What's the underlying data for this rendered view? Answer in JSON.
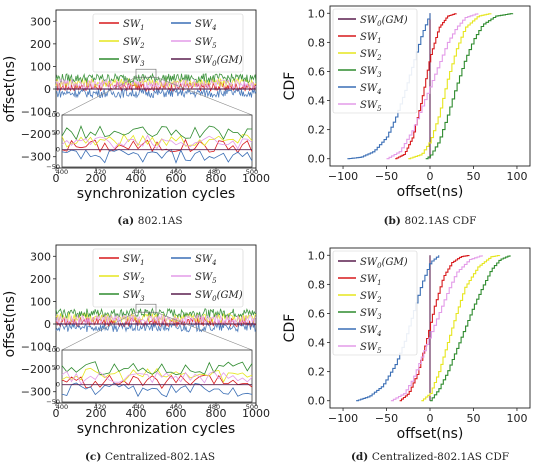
{
  "colors": {
    "SW0": "#5a1e4e",
    "SW1": "#d7191c",
    "SW2": "#e6e61e",
    "SW3": "#2e8b2e",
    "SW4": "#3a6eb5",
    "SW5": "#e39be8"
  },
  "chart_data": [
    {
      "type": "line",
      "panel_label": "(a)",
      "caption": "802.1AS",
      "xlabel": "synchronization cycles",
      "ylabel": "offset(ns)",
      "xlim": [
        0,
        1000
      ],
      "ylim": [
        -350,
        350
      ],
      "xticks": [
        "0",
        "200",
        "400",
        "600",
        "800",
        "1000"
      ],
      "yticks": [
        "300",
        "200",
        "100",
        "0",
        "−100",
        "−200",
        "−300"
      ],
      "series": [
        {
          "key": "SW1",
          "name": "SW1",
          "center": 10,
          "amp": 20
        },
        {
          "key": "SW2",
          "name": "SW2",
          "center": 28,
          "amp": 20
        },
        {
          "key": "SW3",
          "name": "SW3",
          "center": 48,
          "amp": 20
        },
        {
          "key": "SW4",
          "name": "SW4",
          "center": -18,
          "amp": 20
        },
        {
          "key": "SW5",
          "name": "SW5",
          "center": 22,
          "amp": 20
        },
        {
          "key": "SW0",
          "name": "SW0(GM)",
          "center": 0,
          "amp": 0
        }
      ],
      "inset": {
        "xlim": [
          400,
          500
        ],
        "ylim": [
          -50,
          100
        ],
        "xticks": [
          "400",
          "420",
          "440",
          "460",
          "480",
          "500"
        ],
        "yticks": [
          "100",
          "50",
          "0",
          "−50"
        ]
      }
    },
    {
      "type": "line",
      "panel_label": "(b)",
      "caption": "802.1AS CDF",
      "xlabel": "offset(ns)",
      "ylabel": "CDF",
      "xlim": [
        -115,
        115
      ],
      "ylim": [
        -0.05,
        1.05
      ],
      "xticks": [
        "−100",
        "−50",
        "0",
        "50",
        "100"
      ],
      "yticks": [
        "1.0",
        "0.8",
        "0.6",
        "0.4",
        "0.2",
        "0.0"
      ],
      "series": [
        {
          "key": "SW0",
          "name": "SW0(GM)",
          "x": [
            0,
            0
          ],
          "y": [
            0,
            1
          ]
        },
        {
          "key": "SW1",
          "name": "SW1",
          "x": [
            -40,
            -30,
            -20,
            -10,
            0,
            10,
            20,
            30
          ],
          "y": [
            0,
            0.03,
            0.15,
            0.4,
            0.7,
            0.9,
            0.98,
            1
          ]
        },
        {
          "key": "SW2",
          "name": "SW2",
          "x": [
            -25,
            -10,
            0,
            10,
            20,
            30,
            40,
            55,
            70
          ],
          "y": [
            0,
            0.03,
            0.12,
            0.3,
            0.55,
            0.75,
            0.9,
            0.98,
            1
          ]
        },
        {
          "key": "SW3",
          "name": "SW3",
          "x": [
            -5,
            0,
            10,
            20,
            30,
            40,
            50,
            60,
            75,
            95
          ],
          "y": [
            0,
            0.02,
            0.12,
            0.3,
            0.5,
            0.68,
            0.82,
            0.92,
            0.98,
            1
          ]
        },
        {
          "key": "SW4",
          "name": "SW4",
          "x": [
            -95,
            -80,
            -65,
            -50,
            -40,
            -30,
            -20,
            -10,
            0
          ],
          "y": [
            0,
            0.01,
            0.05,
            0.15,
            0.28,
            0.45,
            0.65,
            0.85,
            1
          ]
        },
        {
          "key": "SW5",
          "name": "SW5",
          "x": [
            -50,
            -35,
            -20,
            -10,
            0,
            10,
            20,
            30,
            40,
            55
          ],
          "y": [
            0,
            0.05,
            0.2,
            0.35,
            0.5,
            0.65,
            0.8,
            0.9,
            0.97,
            1
          ]
        }
      ]
    },
    {
      "type": "line",
      "panel_label": "(c)",
      "caption": "Centralized-802.1AS",
      "xlabel": "synchronization cycles",
      "ylabel": "offset(ns)",
      "xlim": [
        0,
        1000
      ],
      "ylim": [
        -350,
        350
      ],
      "xticks": [
        "0",
        "200",
        "400",
        "600",
        "800",
        "1000"
      ],
      "yticks": [
        "300",
        "200",
        "100",
        "0",
        "−100",
        "−200",
        "−300"
      ],
      "series": [
        {
          "key": "SW1",
          "name": "SW1",
          "center": 8,
          "amp": 20
        },
        {
          "key": "SW2",
          "name": "SW2",
          "center": 28,
          "amp": 20
        },
        {
          "key": "SW3",
          "name": "SW3",
          "center": 48,
          "amp": 20
        },
        {
          "key": "SW4",
          "name": "SW4",
          "center": -15,
          "amp": 20
        },
        {
          "key": "SW5",
          "name": "SW5",
          "center": 20,
          "amp": 20
        },
        {
          "key": "SW0",
          "name": "SW0(GM)",
          "center": 0,
          "amp": 0
        }
      ],
      "inset": {
        "xlim": [
          400,
          500
        ],
        "ylim": [
          -50,
          100
        ],
        "xticks": [
          "400",
          "420",
          "440",
          "460",
          "480",
          "500"
        ],
        "yticks": [
          "100",
          "50",
          "0",
          "−50"
        ]
      }
    },
    {
      "type": "line",
      "panel_label": "(d)",
      "caption": "Centralized-802.1AS CDF",
      "xlabel": "offset(ns)",
      "ylabel": "CDF",
      "xlim": [
        -115,
        115
      ],
      "ylim": [
        -0.05,
        1.05
      ],
      "xticks": [
        "−100",
        "−50",
        "0",
        "50",
        "100"
      ],
      "yticks": [
        "1.0",
        "0.8",
        "0.6",
        "0.4",
        "0.2",
        "0.0"
      ],
      "series": [
        {
          "key": "SW0",
          "name": "SW0(GM)",
          "x": [
            0,
            0
          ],
          "y": [
            0,
            1
          ]
        },
        {
          "key": "SW1",
          "name": "SW1",
          "x": [
            -35,
            -25,
            -15,
            -5,
            5,
            15,
            25,
            35,
            45
          ],
          "y": [
            0,
            0.05,
            0.18,
            0.4,
            0.65,
            0.85,
            0.95,
            0.99,
            1
          ]
        },
        {
          "key": "SW2",
          "name": "SW2",
          "x": [
            -10,
            0,
            10,
            20,
            30,
            40,
            55,
            70,
            80
          ],
          "y": [
            0,
            0.05,
            0.2,
            0.4,
            0.6,
            0.78,
            0.92,
            0.99,
            1
          ]
        },
        {
          "key": "SW3",
          "name": "SW3",
          "x": [
            0,
            10,
            20,
            30,
            40,
            50,
            60,
            70,
            80,
            92
          ],
          "y": [
            0,
            0.08,
            0.2,
            0.35,
            0.5,
            0.65,
            0.78,
            0.9,
            0.97,
            1
          ]
        },
        {
          "key": "SW4",
          "name": "SW4",
          "x": [
            -85,
            -70,
            -55,
            -40,
            -30,
            -20,
            -10,
            0,
            10
          ],
          "y": [
            0,
            0.03,
            0.1,
            0.25,
            0.4,
            0.6,
            0.8,
            0.95,
            1
          ]
        },
        {
          "key": "SW5",
          "name": "SW5",
          "x": [
            -45,
            -30,
            -20,
            -10,
            0,
            10,
            20,
            30,
            45,
            60
          ],
          "y": [
            0,
            0.05,
            0.15,
            0.3,
            0.45,
            0.6,
            0.75,
            0.88,
            0.97,
            1
          ]
        }
      ]
    }
  ]
}
